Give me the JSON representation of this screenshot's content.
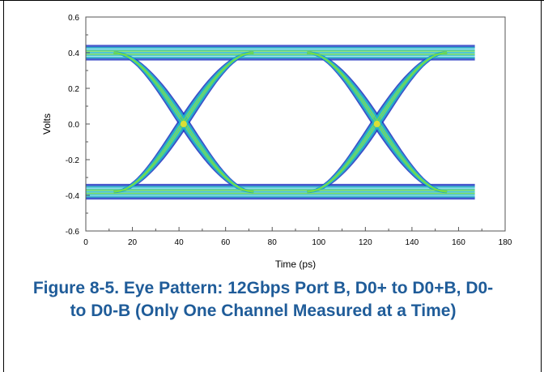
{
  "chart_data": {
    "type": "line",
    "title": "",
    "xlabel": "Time (ps)",
    "ylabel": "Volts",
    "xlim": [
      0,
      180
    ],
    "ylim": [
      -0.6,
      0.6
    ],
    "x_ticks": [
      "0",
      "20",
      "40",
      "60",
      "80",
      "100",
      "120",
      "140",
      "160",
      "180"
    ],
    "y_ticks": [
      "0.6",
      "0.4",
      "0.2",
      "0.0",
      "-0.2",
      "-0.4",
      "-0.6"
    ],
    "grid": false,
    "legend": "none",
    "data_extent_x": [
      0,
      167
    ],
    "levels": {
      "high": 0.4,
      "low": -0.38
    },
    "crossings": [
      {
        "time_ps": 42,
        "volts": 0.0
      },
      {
        "time_ps": 125,
        "volts": 0.0
      }
    ],
    "colors": {
      "outer": "#1a2dbf",
      "mid": "#24b8c8",
      "core": "#7fe03a",
      "hot": "#e8e030"
    }
  },
  "caption": {
    "text": "Figure 8-5. Eye Pattern: 12Gbps Port B, D0+ to D0+B, D0- to D0-B (Only One Channel Measured at a Time)"
  }
}
